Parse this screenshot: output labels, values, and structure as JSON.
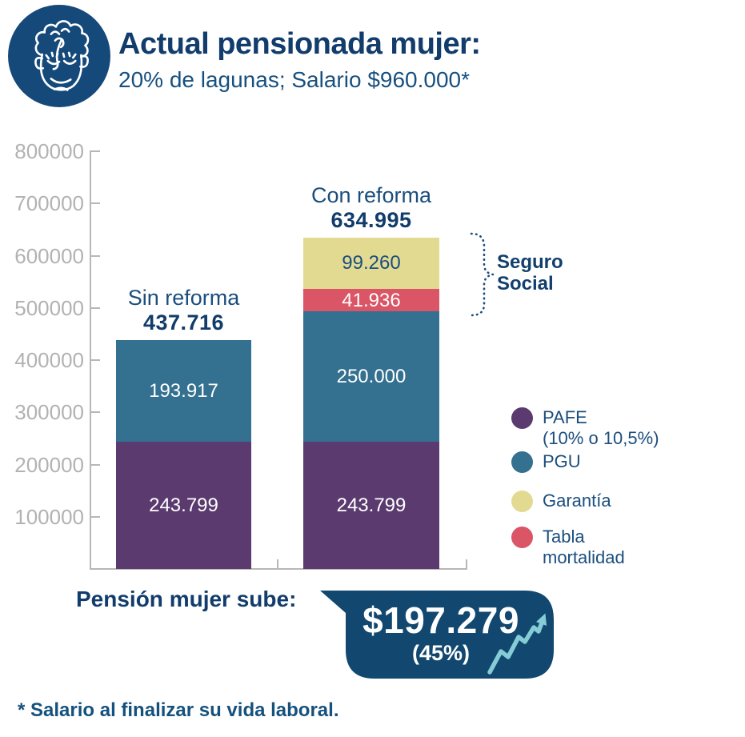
{
  "header": {
    "title": "Actual pensionada mujer:",
    "subtitle": "20% de lagunas; Salario $960.000*"
  },
  "chart_data": {
    "type": "bar",
    "stacked": true,
    "categories": [
      "Sin reforma",
      "Con reforma"
    ],
    "category_total_labels": [
      "437.716",
      "634.995"
    ],
    "category_totals": [
      437716,
      634995
    ],
    "y_axis": {
      "min": 0,
      "max": 800000,
      "step": 100000,
      "tick_labels": [
        "800000",
        "700000",
        "600000",
        "500000",
        "400000",
        "300000",
        "200000",
        "100000"
      ],
      "grid": false
    },
    "series": [
      {
        "name": "PAFE (10% o 10,5%)",
        "color": "#5b3b6f",
        "label_color": "#ffffff",
        "values": [
          243799,
          243799
        ],
        "value_labels": [
          "243.799",
          "243.799"
        ]
      },
      {
        "name": "PGU",
        "color": "#34708f",
        "label_color": "#ffffff",
        "values": [
          193917,
          250000
        ],
        "value_labels": [
          "193.917",
          "250.000"
        ]
      },
      {
        "name": "Tabla mortalidad",
        "color": "#da5566",
        "label_color": "#ffffff",
        "values": [
          0,
          41936
        ],
        "value_labels": [
          "",
          "41.936"
        ]
      },
      {
        "name": "Garantía",
        "color": "#e3da92",
        "label_color": "#1b4e7e",
        "values": [
          0,
          99260
        ],
        "value_labels": [
          "",
          "99.260"
        ]
      }
    ],
    "annotation": {
      "label": "Seguro\nSocial"
    },
    "legend": {
      "position": "right",
      "items": [
        {
          "lines": "PAFE\n(10% o 10,5%)",
          "color": "#5b3b6f"
        },
        {
          "lines": "PGU",
          "color": "#34708f"
        },
        {
          "lines": "Garantía",
          "color": "#e3da92"
        },
        {
          "lines": "Tabla\nmortalidad",
          "color": "#da5566"
        }
      ]
    }
  },
  "callout": {
    "label": "Pensión mujer sube:",
    "amount": "$197.279",
    "percent": "(45%)"
  },
  "footnote": "* Salario al finalizar su vida laboral.",
  "colors": {
    "navy": "#15497a",
    "navy_dark": "#113c6b",
    "text_blue": "#1b4e7e",
    "axis_gray": "#b7b7b7",
    "arrow_teal": "#85ccd6",
    "bubble": "#12486f"
  }
}
